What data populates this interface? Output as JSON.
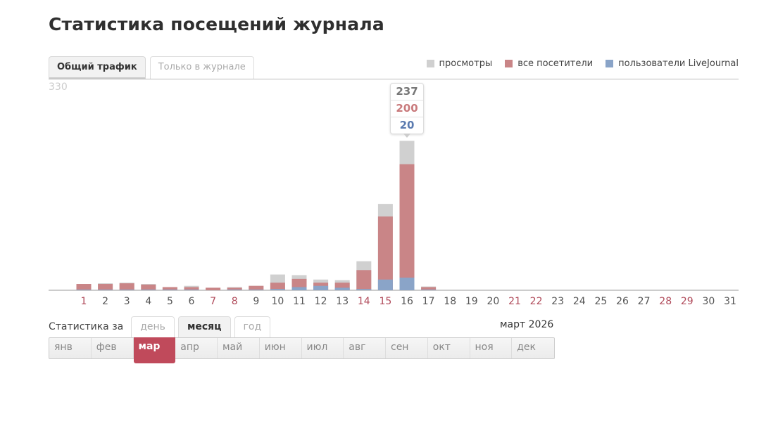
{
  "page": {
    "title": "Статистика посещений журнала"
  },
  "tabs": [
    {
      "label": "Общий трафик",
      "active": true
    },
    {
      "label": "Только в журнале",
      "active": false
    }
  ],
  "legend": [
    {
      "label": "просмотры",
      "color": "#d0d0d0"
    },
    {
      "label": "все посетители",
      "color": "#c98587"
    },
    {
      "label": "пользователи LiveJournal",
      "color": "#8aa4c8"
    }
  ],
  "chart_data": {
    "type": "bar",
    "y_max_label": "330",
    "ylim": [
      0,
      330
    ],
    "categories": [
      "1",
      "2",
      "3",
      "4",
      "5",
      "6",
      "7",
      "8",
      "9",
      "10",
      "11",
      "12",
      "13",
      "14",
      "15",
      "16",
      "17",
      "18",
      "19",
      "20",
      "21",
      "22",
      "23",
      "24",
      "25",
      "26",
      "27",
      "28",
      "29",
      "30",
      "31"
    ],
    "weekend_days": [
      "1",
      "7",
      "8",
      "14",
      "15",
      "21",
      "22",
      "28",
      "29"
    ],
    "series": [
      {
        "name": "просмотры",
        "color": "#d0d0d0",
        "values": [
          10,
          11,
          12,
          10,
          5,
          7,
          4,
          5,
          7,
          25,
          24,
          17,
          16,
          46,
          137,
          237,
          6,
          0,
          0,
          0,
          0,
          0,
          0,
          0,
          0,
          0,
          0,
          0,
          0,
          0,
          0
        ]
      },
      {
        "name": "все посетители",
        "color": "#c98587",
        "values": [
          10,
          10,
          11,
          9,
          5,
          5,
          4,
          4,
          7,
          12,
          18,
          12,
          12,
          32,
          117,
          200,
          5,
          0,
          0,
          0,
          0,
          0,
          0,
          0,
          0,
          0,
          0,
          0,
          0,
          0,
          0
        ]
      },
      {
        "name": "пользователи LiveJournal",
        "color": "#8aa4c8",
        "values": [
          1,
          1,
          1,
          1,
          1,
          1,
          0,
          1,
          1,
          2,
          5,
          7,
          4,
          2,
          17,
          20,
          1,
          0,
          0,
          0,
          0,
          0,
          0,
          0,
          0,
          0,
          0,
          0,
          0,
          0,
          0
        ]
      }
    ],
    "tooltip": {
      "day": "16",
      "values": [
        "237",
        "200",
        "20"
      ],
      "colors": [
        "#777777",
        "#c97a7c",
        "#5b7bb0"
      ]
    }
  },
  "period": {
    "label": "Статистика за",
    "options": [
      {
        "label": "день",
        "active": false
      },
      {
        "label": "месяц",
        "active": true
      },
      {
        "label": "год",
        "active": false
      }
    ],
    "current": "март 2026"
  },
  "months": [
    {
      "label": "янв",
      "active": false
    },
    {
      "label": "фев",
      "active": false
    },
    {
      "label": "мар",
      "active": true
    },
    {
      "label": "апр",
      "active": false
    },
    {
      "label": "май",
      "active": false
    },
    {
      "label": "июн",
      "active": false
    },
    {
      "label": "июл",
      "active": false
    },
    {
      "label": "авг",
      "active": false
    },
    {
      "label": "сен",
      "active": false
    },
    {
      "label": "окт",
      "active": false
    },
    {
      "label": "ноя",
      "active": false
    },
    {
      "label": "дек",
      "active": false
    }
  ]
}
